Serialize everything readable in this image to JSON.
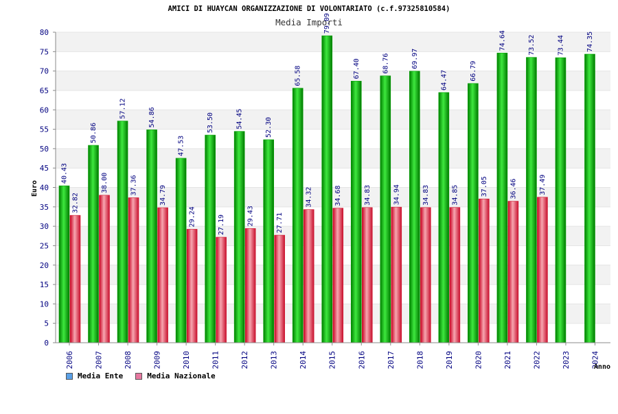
{
  "chart_data": {
    "type": "bar",
    "title": "AMICI DI HUAYCAN ORGANIZZAZIONE DI VOLONTARIATO (c.f.97325810584)",
    "subtitle": "Media Importi",
    "xlabel": "Anno",
    "ylabel": "Euro",
    "ylim": [
      0,
      80
    ],
    "yticks": [
      0,
      5,
      10,
      15,
      20,
      25,
      30,
      35,
      40,
      45,
      50,
      55,
      60,
      65,
      70,
      75,
      80
    ],
    "grid": true,
    "legend_position": "bottom-left",
    "categories": [
      "2006",
      "2007",
      "2008",
      "2009",
      "2010",
      "2011",
      "2012",
      "2013",
      "2014",
      "2015",
      "2016",
      "2017",
      "2018",
      "2019",
      "2020",
      "2021",
      "2022",
      "2023",
      "2024"
    ],
    "series": [
      {
        "name": "Media Ente",
        "color": "#00b400",
        "legend_color": "#5aa0e6",
        "values": [
          40.43,
          50.86,
          57.12,
          54.86,
          47.53,
          53.5,
          54.45,
          52.3,
          65.58,
          79.09,
          67.4,
          68.76,
          69.97,
          64.47,
          66.79,
          74.64,
          73.52,
          73.44,
          74.35
        ],
        "labels": [
          "40.43",
          "50.86",
          "57.12",
          "54.86",
          "47.53",
          "53.50",
          "54.45",
          "52.30",
          "65.58",
          "79.09",
          "67.40",
          "68.76",
          "69.97",
          "64.47",
          "66.79",
          "74.64",
          "73.52",
          "73.44",
          "74.35"
        ]
      },
      {
        "name": "Media Nazionale",
        "color": "#e0303c",
        "legend_color": "#e678a0",
        "values": [
          32.82,
          38.0,
          37.36,
          34.79,
          29.24,
          27.19,
          29.43,
          27.71,
          34.32,
          34.68,
          34.83,
          34.94,
          34.83,
          34.85,
          37.05,
          36.46,
          37.49,
          null,
          null
        ],
        "labels": [
          "32.82",
          "38.00",
          "37.36",
          "34.79",
          "29.24",
          "27.19",
          "29.43",
          "27.71",
          "34.32",
          "34.68",
          "34.83",
          "34.94",
          "34.83",
          "34.85",
          "37.05",
          "36.46",
          "37.49",
          null,
          null
        ]
      }
    ]
  }
}
